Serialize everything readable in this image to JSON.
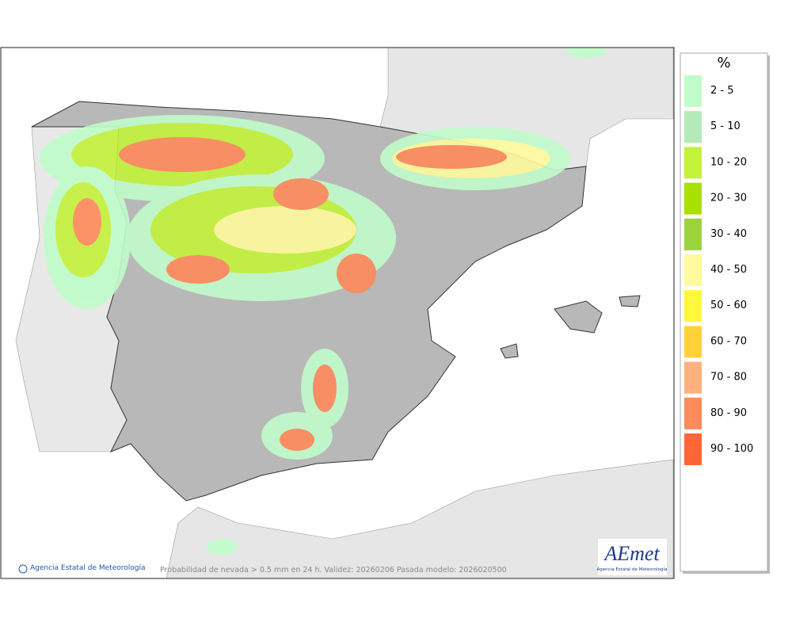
{
  "legend": {
    "title": "%",
    "items": [
      {
        "label": "2 - 5",
        "color": "#c0fcca"
      },
      {
        "label": "5 - 10",
        "color": "#b4eab8"
      },
      {
        "label": "10 - 20",
        "color": "#c4f23a"
      },
      {
        "label": "20 - 30",
        "color": "#a8e000"
      },
      {
        "label": "30 - 40",
        "color": "#9cd23c"
      },
      {
        "label": "40 - 50",
        "color": "#fffa9c"
      },
      {
        "label": "50 - 60",
        "color": "#fff73c"
      },
      {
        "label": "60 - 70",
        "color": "#ffd23c"
      },
      {
        "label": "70 - 80",
        "color": "#ffb07c"
      },
      {
        "label": "80 - 90",
        "color": "#ff8a5a"
      },
      {
        "label": "90 - 100",
        "color": "#ff6636"
      }
    ]
  },
  "footer": {
    "credit": "Agencia Estatal de Meteorología",
    "caption": "Probabilidad de nevada > 0.5 mm en 24 h. Validez: 20260206 Pasada modelo: 2026020500"
  },
  "logo": {
    "name": "AEmet",
    "subtitle": "Agencia Estatal de Meteorología"
  }
}
